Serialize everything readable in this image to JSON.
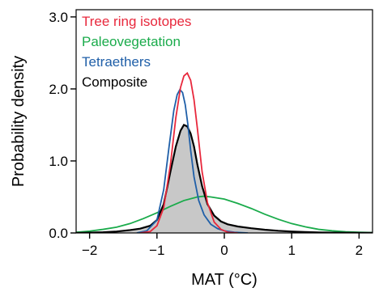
{
  "chart_data": {
    "type": "line",
    "xlabel": "MAT (°C)",
    "ylabel": "Probability density",
    "xlim": [
      -2.2,
      2.2
    ],
    "ylim": [
      0,
      3.1
    ],
    "xticks": [
      -2,
      -1,
      0,
      1,
      2
    ],
    "xtick_labels": [
      "−2",
      "−1",
      "0",
      "1",
      "2"
    ],
    "yticks": [
      0.0,
      1.0,
      2.0,
      3.0
    ],
    "ytick_labels": [
      "0.0",
      "1.0",
      "2.0",
      "3.0"
    ],
    "legend_position": "top-left",
    "grid": false,
    "series": [
      {
        "name": "Tree ring isotopes",
        "color": "#e8283c",
        "fill": false,
        "x": [
          -1.25,
          -1.1,
          -1.0,
          -0.9,
          -0.8,
          -0.72,
          -0.65,
          -0.6,
          -0.55,
          -0.5,
          -0.45,
          -0.4,
          -0.33,
          -0.25,
          -0.15,
          -0.05,
          0.05,
          0.2
        ],
        "y": [
          0.0,
          0.02,
          0.1,
          0.35,
          0.95,
          1.6,
          2.02,
          2.18,
          2.22,
          2.12,
          1.85,
          1.45,
          0.85,
          0.42,
          0.15,
          0.05,
          0.01,
          0.0
        ]
      },
      {
        "name": "Paleovegetation",
        "color": "#1aab4b",
        "fill": false,
        "x": [
          -2.2,
          -2.0,
          -1.8,
          -1.6,
          -1.4,
          -1.2,
          -1.0,
          -0.8,
          -0.6,
          -0.4,
          -0.3,
          -0.2,
          0.0,
          0.2,
          0.4,
          0.6,
          0.8,
          1.0,
          1.2,
          1.4,
          1.6,
          1.8,
          2.0,
          2.2
        ],
        "y": [
          0.01,
          0.025,
          0.05,
          0.08,
          0.13,
          0.2,
          0.28,
          0.37,
          0.45,
          0.5,
          0.51,
          0.5,
          0.47,
          0.41,
          0.34,
          0.26,
          0.19,
          0.13,
          0.085,
          0.05,
          0.03,
          0.017,
          0.01,
          0.005
        ]
      },
      {
        "name": "Tetraethers",
        "color": "#1f5fa8",
        "fill": false,
        "x": [
          -1.3,
          -1.15,
          -1.0,
          -0.9,
          -0.82,
          -0.75,
          -0.7,
          -0.66,
          -0.62,
          -0.58,
          -0.54,
          -0.5,
          -0.45,
          -0.38,
          -0.3,
          -0.2,
          -0.1,
          0.0,
          0.15,
          0.35
        ],
        "y": [
          0.0,
          0.03,
          0.18,
          0.6,
          1.2,
          1.7,
          1.92,
          1.99,
          1.95,
          1.78,
          1.5,
          1.15,
          0.78,
          0.45,
          0.25,
          0.12,
          0.06,
          0.03,
          0.01,
          0.0
        ]
      },
      {
        "name": "Composite",
        "color": "#000000",
        "fill": true,
        "fill_color": "#c8c8c8",
        "x": [
          -2.2,
          -2.0,
          -1.8,
          -1.6,
          -1.4,
          -1.25,
          -1.1,
          -1.0,
          -0.9,
          -0.8,
          -0.72,
          -0.65,
          -0.6,
          -0.55,
          -0.5,
          -0.45,
          -0.4,
          -0.33,
          -0.25,
          -0.15,
          -0.05,
          0.05,
          0.2,
          0.4,
          0.6,
          0.8,
          1.0,
          1.2,
          1.4,
          1.6,
          1.8,
          2.0,
          2.2
        ],
        "y": [
          0.0,
          0.005,
          0.01,
          0.02,
          0.04,
          0.06,
          0.1,
          0.18,
          0.4,
          0.85,
          1.2,
          1.42,
          1.5,
          1.48,
          1.38,
          1.2,
          0.95,
          0.65,
          0.4,
          0.24,
          0.16,
          0.12,
          0.09,
          0.065,
          0.045,
          0.03,
          0.02,
          0.013,
          0.008,
          0.005,
          0.003,
          0.002,
          0.001
        ]
      }
    ]
  }
}
